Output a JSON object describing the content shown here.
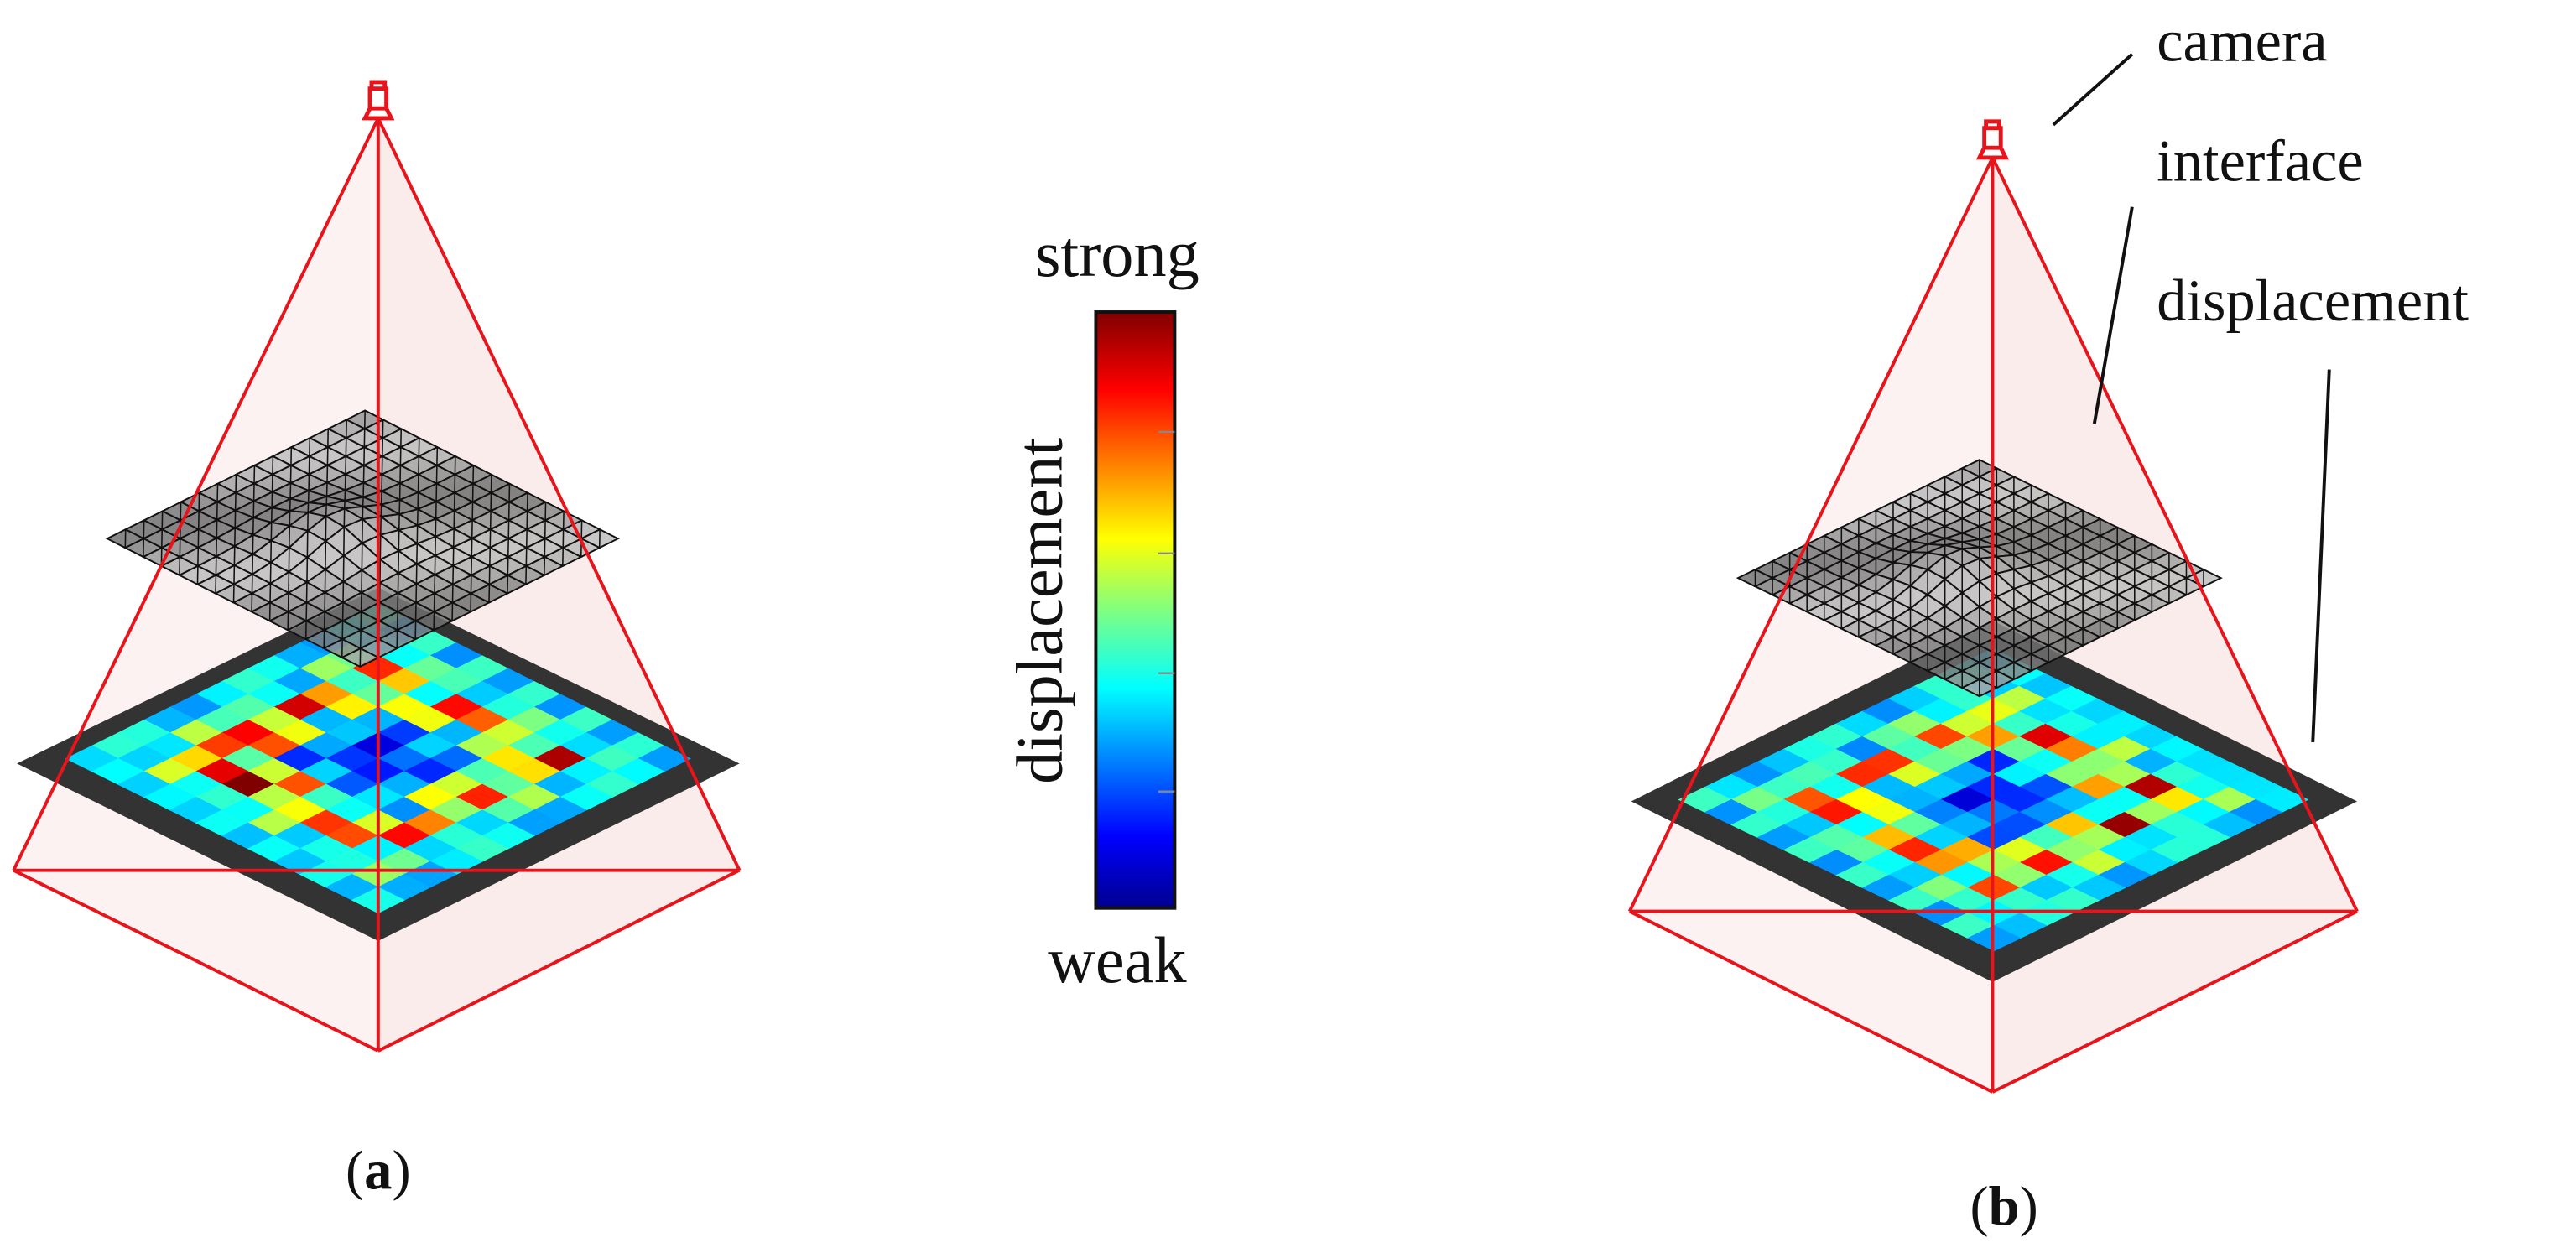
{
  "colorbar": {
    "top_label": "strong",
    "bottom_label": "weak",
    "axis_label": "displacement"
  },
  "annotations": {
    "camera": "camera",
    "interface": "interface",
    "displacement": "displacement"
  },
  "panels": [
    {
      "open": "(",
      "letter": "a",
      "close": ")"
    },
    {
      "open": "(",
      "letter": "b",
      "close": ")"
    }
  ]
}
